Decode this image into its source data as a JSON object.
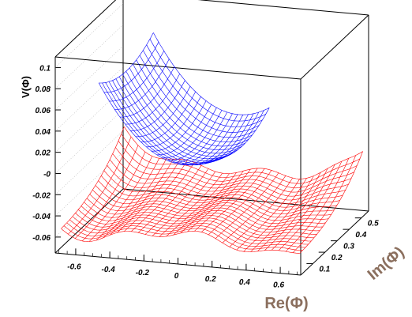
{
  "chart_data": {
    "type": "surface",
    "xlabel": "Re(Φ)",
    "ylabel": "Im(Φ)",
    "zlabel": "V(Φ)",
    "x_ticks": [
      "-0.6",
      "-0.4",
      "-0.2",
      "0",
      "0.2",
      "0.4",
      "0.6"
    ],
    "y_ticks": [
      "0.1",
      "0.2",
      "0.3",
      "0.4",
      "0.5"
    ],
    "z_ticks": [
      "-0.06",
      "-0.04",
      "-0.02",
      "-0",
      "0.02",
      "0.04",
      "0.06",
      "0.08",
      "0.1"
    ],
    "xlim": [
      -0.72,
      0.72
    ],
    "ylim": [
      0,
      0.56
    ],
    "zlim": [
      -0.075,
      0.11
    ],
    "series": [
      {
        "surface": "double-well",
        "color": "#ff0000",
        "min_at_re": [
          -0.55,
          0.55
        ],
        "barrier": 0.012,
        "wall_height": 0.1
      },
      {
        "surface": "single-well",
        "color": "#0000ff",
        "min_at_re": [
          0
        ],
        "min_value": 0.0,
        "wall_height": 0.09
      }
    ],
    "grid": true
  }
}
